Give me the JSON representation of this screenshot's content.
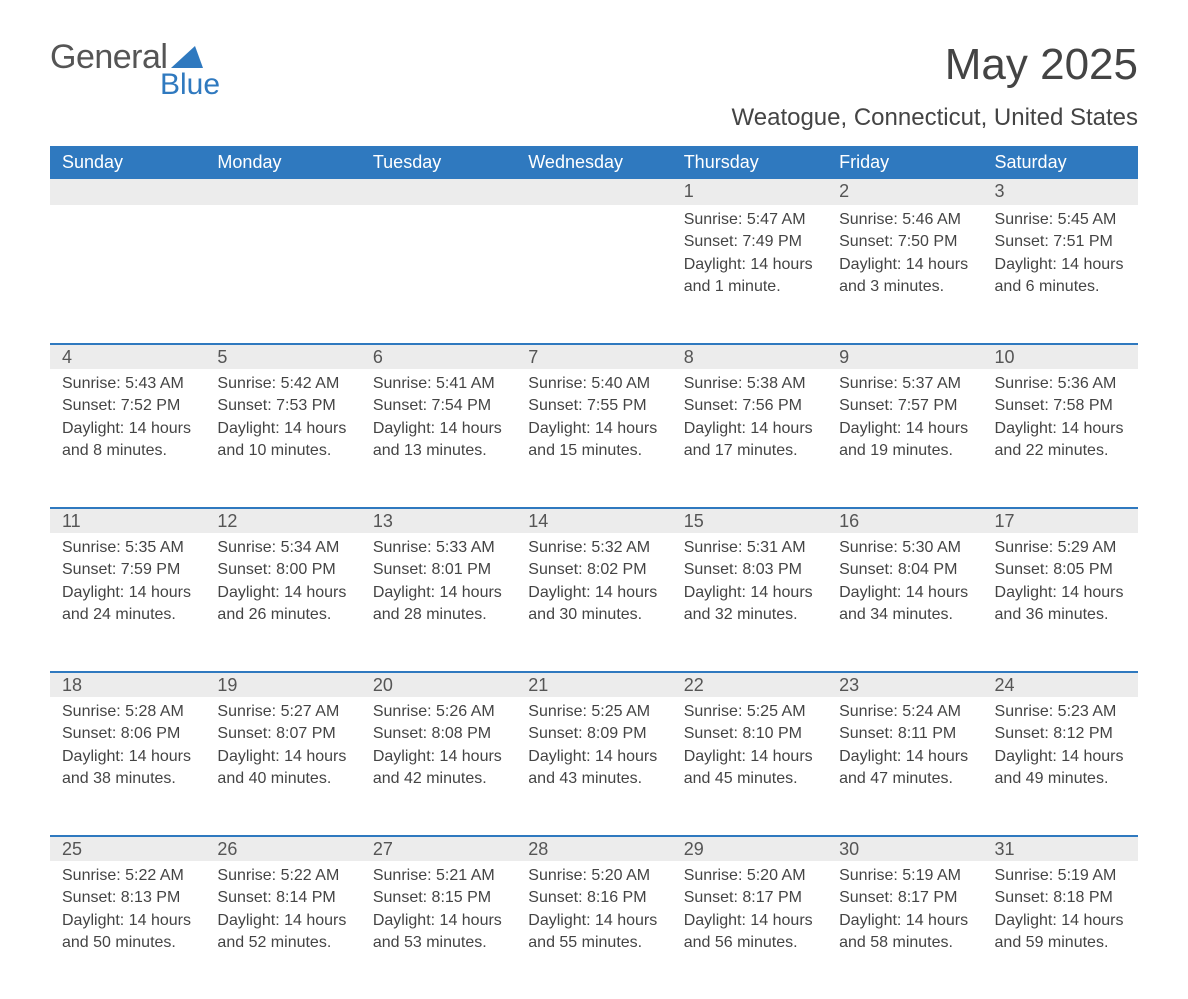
{
  "logo": {
    "text1": "General",
    "text2": "Blue"
  },
  "header": {
    "month_year": "May 2025",
    "location": "Weatogue, Connecticut, United States"
  },
  "style": {
    "header_bg": "#2f79bf",
    "header_text": "#ffffff",
    "daynum_bg": "#ececec",
    "row_divider": "#2f79bf",
    "body_text": "#444444",
    "logo_icon_color": "#2f79bf",
    "day_header_fontsize": 18,
    "daynum_fontsize": 18,
    "body_fontsize": 16,
    "title_fontsize": 44,
    "location_fontsize": 24
  },
  "dayHeaders": [
    "Sunday",
    "Monday",
    "Tuesday",
    "Wednesday",
    "Thursday",
    "Friday",
    "Saturday"
  ],
  "weeks": [
    [
      null,
      null,
      null,
      null,
      {
        "n": "1",
        "sr": "5:47 AM",
        "ss": "7:49 PM",
        "dl": "14 hours and 1 minute."
      },
      {
        "n": "2",
        "sr": "5:46 AM",
        "ss": "7:50 PM",
        "dl": "14 hours and 3 minutes."
      },
      {
        "n": "3",
        "sr": "5:45 AM",
        "ss": "7:51 PM",
        "dl": "14 hours and 6 minutes."
      }
    ],
    [
      {
        "n": "4",
        "sr": "5:43 AM",
        "ss": "7:52 PM",
        "dl": "14 hours and 8 minutes."
      },
      {
        "n": "5",
        "sr": "5:42 AM",
        "ss": "7:53 PM",
        "dl": "14 hours and 10 minutes."
      },
      {
        "n": "6",
        "sr": "5:41 AM",
        "ss": "7:54 PM",
        "dl": "14 hours and 13 minutes."
      },
      {
        "n": "7",
        "sr": "5:40 AM",
        "ss": "7:55 PM",
        "dl": "14 hours and 15 minutes."
      },
      {
        "n": "8",
        "sr": "5:38 AM",
        "ss": "7:56 PM",
        "dl": "14 hours and 17 minutes."
      },
      {
        "n": "9",
        "sr": "5:37 AM",
        "ss": "7:57 PM",
        "dl": "14 hours and 19 minutes."
      },
      {
        "n": "10",
        "sr": "5:36 AM",
        "ss": "7:58 PM",
        "dl": "14 hours and 22 minutes."
      }
    ],
    [
      {
        "n": "11",
        "sr": "5:35 AM",
        "ss": "7:59 PM",
        "dl": "14 hours and 24 minutes."
      },
      {
        "n": "12",
        "sr": "5:34 AM",
        "ss": "8:00 PM",
        "dl": "14 hours and 26 minutes."
      },
      {
        "n": "13",
        "sr": "5:33 AM",
        "ss": "8:01 PM",
        "dl": "14 hours and 28 minutes."
      },
      {
        "n": "14",
        "sr": "5:32 AM",
        "ss": "8:02 PM",
        "dl": "14 hours and 30 minutes."
      },
      {
        "n": "15",
        "sr": "5:31 AM",
        "ss": "8:03 PM",
        "dl": "14 hours and 32 minutes."
      },
      {
        "n": "16",
        "sr": "5:30 AM",
        "ss": "8:04 PM",
        "dl": "14 hours and 34 minutes."
      },
      {
        "n": "17",
        "sr": "5:29 AM",
        "ss": "8:05 PM",
        "dl": "14 hours and 36 minutes."
      }
    ],
    [
      {
        "n": "18",
        "sr": "5:28 AM",
        "ss": "8:06 PM",
        "dl": "14 hours and 38 minutes."
      },
      {
        "n": "19",
        "sr": "5:27 AM",
        "ss": "8:07 PM",
        "dl": "14 hours and 40 minutes."
      },
      {
        "n": "20",
        "sr": "5:26 AM",
        "ss": "8:08 PM",
        "dl": "14 hours and 42 minutes."
      },
      {
        "n": "21",
        "sr": "5:25 AM",
        "ss": "8:09 PM",
        "dl": "14 hours and 43 minutes."
      },
      {
        "n": "22",
        "sr": "5:25 AM",
        "ss": "8:10 PM",
        "dl": "14 hours and 45 minutes."
      },
      {
        "n": "23",
        "sr": "5:24 AM",
        "ss": "8:11 PM",
        "dl": "14 hours and 47 minutes."
      },
      {
        "n": "24",
        "sr": "5:23 AM",
        "ss": "8:12 PM",
        "dl": "14 hours and 49 minutes."
      }
    ],
    [
      {
        "n": "25",
        "sr": "5:22 AM",
        "ss": "8:13 PM",
        "dl": "14 hours and 50 minutes."
      },
      {
        "n": "26",
        "sr": "5:22 AM",
        "ss": "8:14 PM",
        "dl": "14 hours and 52 minutes."
      },
      {
        "n": "27",
        "sr": "5:21 AM",
        "ss": "8:15 PM",
        "dl": "14 hours and 53 minutes."
      },
      {
        "n": "28",
        "sr": "5:20 AM",
        "ss": "8:16 PM",
        "dl": "14 hours and 55 minutes."
      },
      {
        "n": "29",
        "sr": "5:20 AM",
        "ss": "8:17 PM",
        "dl": "14 hours and 56 minutes."
      },
      {
        "n": "30",
        "sr": "5:19 AM",
        "ss": "8:17 PM",
        "dl": "14 hours and 58 minutes."
      },
      {
        "n": "31",
        "sr": "5:19 AM",
        "ss": "8:18 PM",
        "dl": "14 hours and 59 minutes."
      }
    ]
  ],
  "labels": {
    "sunrise": "Sunrise: ",
    "sunset": "Sunset: ",
    "daylight": "Daylight: "
  }
}
